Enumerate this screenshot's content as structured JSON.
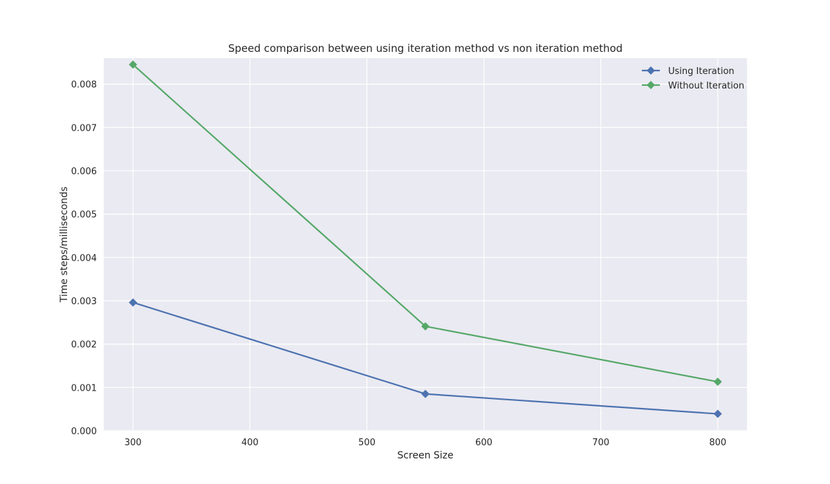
{
  "chart_data": {
    "type": "line",
    "title": "Speed comparison between using iteration method vs non iteration method",
    "xlabel": "Screen Size",
    "ylabel": "Time steps/milliseconds",
    "x": [
      300,
      550,
      800
    ],
    "xlim": [
      275,
      825
    ],
    "ylim": [
      0,
      0.0086
    ],
    "xticks": [
      300,
      400,
      500,
      600,
      700,
      800
    ],
    "xtick_labels": [
      "300",
      "400",
      "500",
      "600",
      "700",
      "800"
    ],
    "yticks": [
      0,
      0.001,
      0.002,
      0.003,
      0.004,
      0.005,
      0.006,
      0.007,
      0.008
    ],
    "ytick_labels": [
      "0.000",
      "0.001",
      "0.002",
      "0.003",
      "0.004",
      "0.005",
      "0.006",
      "0.007",
      "0.008"
    ],
    "grid": true,
    "legend": "top-right",
    "background": "#eaeaf2",
    "marker": "diamond",
    "series": [
      {
        "name": "Using Iteration",
        "color": "#4c72b0",
        "values": [
          0.00296,
          0.00085,
          0.00039
        ]
      },
      {
        "name": "Without Iteration",
        "color": "#55a868",
        "values": [
          0.00845,
          0.00241,
          0.00113
        ]
      }
    ]
  }
}
